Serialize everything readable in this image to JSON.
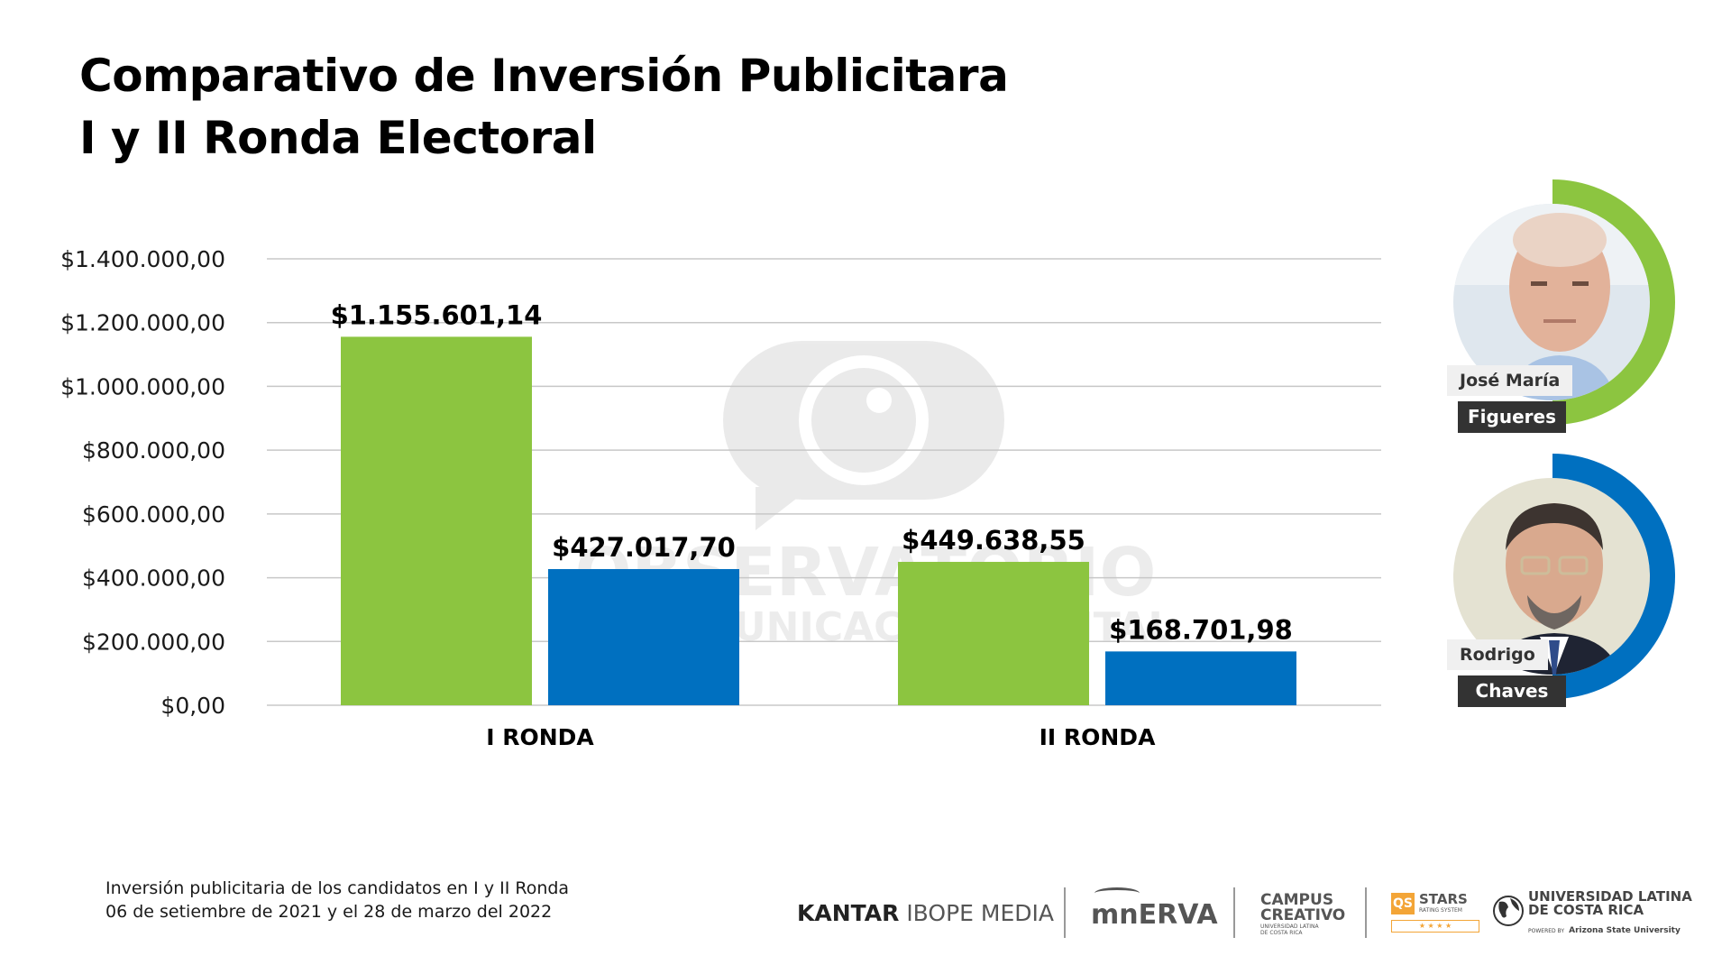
{
  "header": {
    "title_line1": "Comparativo de Inversión Publicitara",
    "title_line2": "I y II Ronda Electoral"
  },
  "watermark": {
    "icon": "speech-bubble-eye-icon",
    "line1": "OBSERVATORIO",
    "line2": "DE COMUNICACIÓN DIGITAL"
  },
  "chart_data": {
    "type": "bar",
    "title": "Comparativo de Inversión Publicitara I y II Ronda Electoral",
    "xlabel": "",
    "ylabel": "",
    "categories": [
      "I RONDA",
      "II RONDA"
    ],
    "series": [
      {
        "name": "José María Figueres",
        "color": "#8cc540",
        "values": [
          1155601.14,
          449638.55
        ],
        "labels": [
          "$1.155.601,14",
          "$449.638,55"
        ]
      },
      {
        "name": "Rodrigo Chaves",
        "color": "#0070c0",
        "values": [
          427017.7,
          168701.98
        ],
        "labels": [
          "$427.017,70",
          "$168.701,98"
        ]
      }
    ],
    "ylim": [
      0,
      1400000
    ],
    "yticks": [
      0,
      200000,
      400000,
      600000,
      800000,
      1000000,
      1200000,
      1400000
    ],
    "ytick_labels": [
      "$0,00",
      "$200.000,00",
      "$400.000,00",
      "$600.000,00",
      "$800.000,00",
      "$1.000.000,00",
      "$1.200.000,00",
      "$1.400.000,00"
    ],
    "grid": true,
    "legend": "right (candidate photos)"
  },
  "candidates": [
    {
      "first_name": "José María",
      "last_name": "Figueres",
      "color": "#8cc540",
      "photo": "portrait-photo"
    },
    {
      "first_name": "Rodrigo",
      "last_name": "Chaves",
      "color": "#0070c0",
      "photo": "portrait-photo"
    }
  ],
  "footer": {
    "note_line1": "Inversión publicitaria de los candidatos en I y II Ronda",
    "note_line2": "06 de setiembre de 2021 y el 28 de marzo del 2022",
    "logos": {
      "kantar_bold": "KANTAR",
      "kantar_rest": "IBOPE MEDIA",
      "minerva": "mnERVA",
      "campus_line1": "CAMPUS",
      "campus_line2": "CREATIVO",
      "campus_sub1": "UNIVERSIDAD LATINA",
      "campus_sub2": "DE COSTA RICA",
      "qs_badge": "QS",
      "qs_stars": "STARS",
      "qs_sub": "RATING SYSTEM",
      "qs_rating": "★ ★ ★ ★",
      "ulatina_line1": "UNIVERSIDAD LATINA",
      "ulatina_line2": "DE COSTA RICA",
      "ulatina_powered_prefix": "POWERED BY",
      "ulatina_powered": "Arizona State University"
    }
  }
}
